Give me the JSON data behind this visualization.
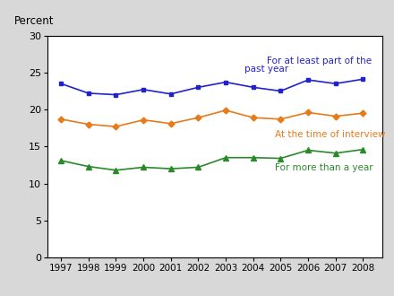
{
  "years": [
    1997,
    1998,
    1999,
    2000,
    2001,
    2002,
    2003,
    2004,
    2005,
    2006,
    2007,
    2008
  ],
  "blue_data": [
    23.5,
    22.2,
    22.0,
    22.7,
    22.1,
    23.0,
    23.7,
    23.0,
    22.5,
    24.0,
    23.5,
    24.1
  ],
  "orange_data": [
    18.7,
    18.0,
    17.7,
    18.6,
    18.1,
    18.9,
    19.9,
    18.9,
    18.7,
    19.6,
    19.1,
    19.5
  ],
  "green_data": [
    13.1,
    12.3,
    11.8,
    12.2,
    12.0,
    12.2,
    13.5,
    13.5,
    13.4,
    14.5,
    14.1,
    14.6
  ],
  "blue_color": "#2222cc",
  "orange_color": "#e87a1a",
  "green_color": "#2a8a2a",
  "blue_label_line1": "For at least part of the",
  "blue_label_line2": "past year",
  "orange_label": "At the time of interview",
  "green_label": "For more than a year",
  "percent_label": "Percent",
  "ylim": [
    0,
    30
  ],
  "yticks": [
    0,
    5,
    10,
    15,
    20,
    25,
    30
  ],
  "xlim_low": 1996.5,
  "xlim_high": 2008.7,
  "bg_color": "#ffffff",
  "outer_bg": "#d8d8d8",
  "border_color": "#888888"
}
